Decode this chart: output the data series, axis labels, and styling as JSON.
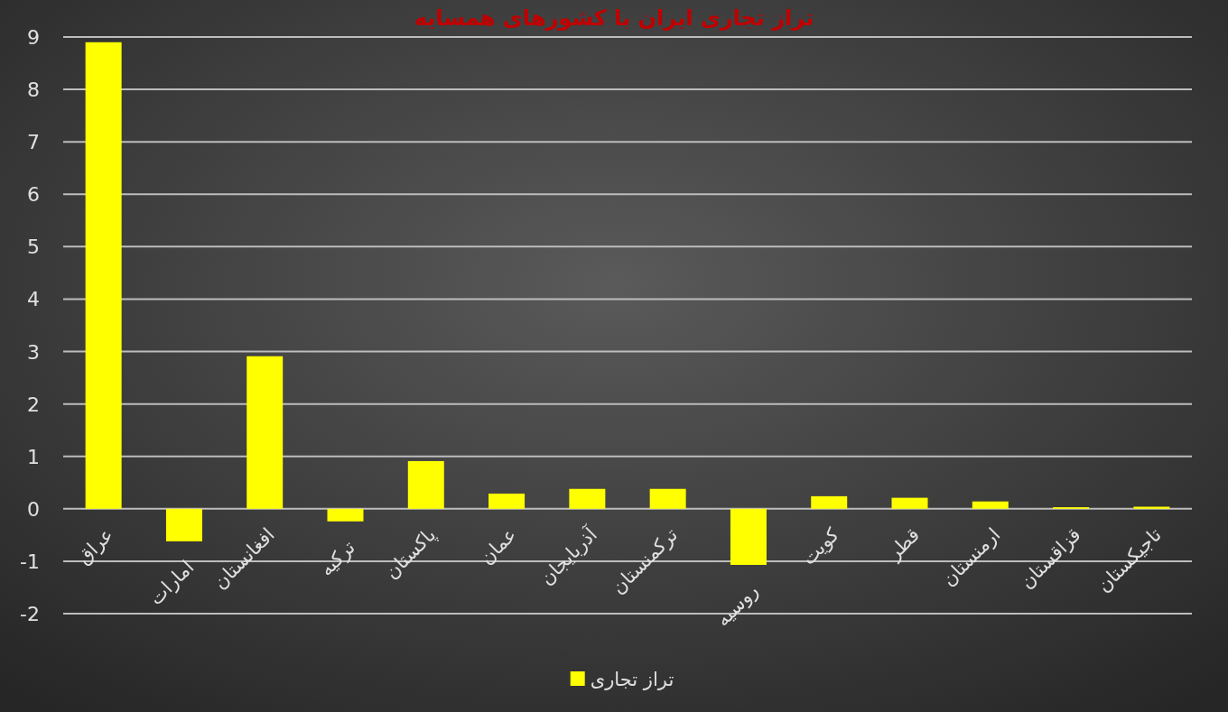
{
  "chart_data": {
    "type": "bar",
    "title": "تراز تجاری ایران با کشورهای همسایه",
    "categories": [
      "عراق",
      "امارات",
      "افغانستان",
      "ترکیه",
      "پاکستان",
      "عمان",
      "آذربایجان",
      "ترکمنستان",
      "روسیه",
      "کویت",
      "قطر",
      "ارمنستان",
      "قزاقستان",
      "تاجیکستان"
    ],
    "series": [
      {
        "name": "تراز تجاری",
        "color": "#ffff00",
        "values": [
          8.9,
          -0.62,
          2.91,
          -0.24,
          0.91,
          0.29,
          0.38,
          0.38,
          -1.07,
          0.24,
          0.21,
          0.14,
          0.03,
          0.04
        ]
      }
    ],
    "ylim": [
      -2,
      9
    ],
    "yticks": [
      -2,
      -1,
      0,
      1,
      2,
      3,
      4,
      5,
      6,
      7,
      8,
      9
    ],
    "grid": "y",
    "legend": "bottom"
  }
}
